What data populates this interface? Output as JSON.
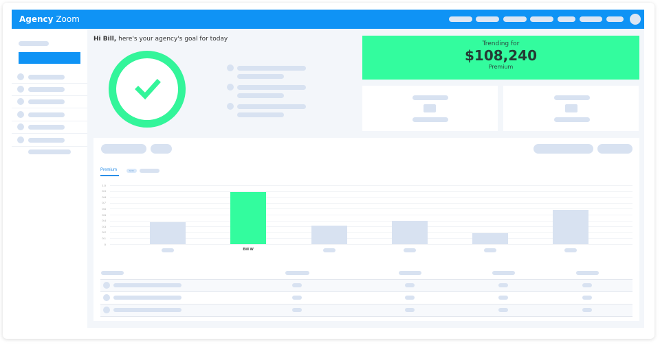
{
  "app": {
    "brand_bold": "Agency",
    "brand_light": "Zoom"
  },
  "greeting": {
    "name": "Hi Bill,",
    "text": " here's your agency's goal for today"
  },
  "goal": {
    "status_icon": "check-icon",
    "ring_color": "#33f59a"
  },
  "trending": {
    "label": "Trending for",
    "amount": "$108,240",
    "sublabel": "Premium",
    "color": "#33fc9e"
  },
  "chart_tabs": {
    "active": "Premium",
    "chip": "$150"
  },
  "colors": {
    "accent": "#0f93f5",
    "highlight": "#33fc9e",
    "muted_bar": "#d8e2f1"
  },
  "chart_data": {
    "type": "bar",
    "categories": [
      "",
      "Bill W",
      "",
      "",
      "",
      ""
    ],
    "values": [
      0.37,
      0.88,
      0.31,
      0.39,
      0.19,
      0.58
    ],
    "highlight_index": 1,
    "yticks": [
      "1.0",
      "0.9",
      "0.8",
      "0.7",
      "0.6",
      "0.5",
      "0.4",
      "0.3",
      "0.2",
      "0.1",
      "0"
    ],
    "ylim": [
      0,
      1
    ],
    "grid": true
  }
}
